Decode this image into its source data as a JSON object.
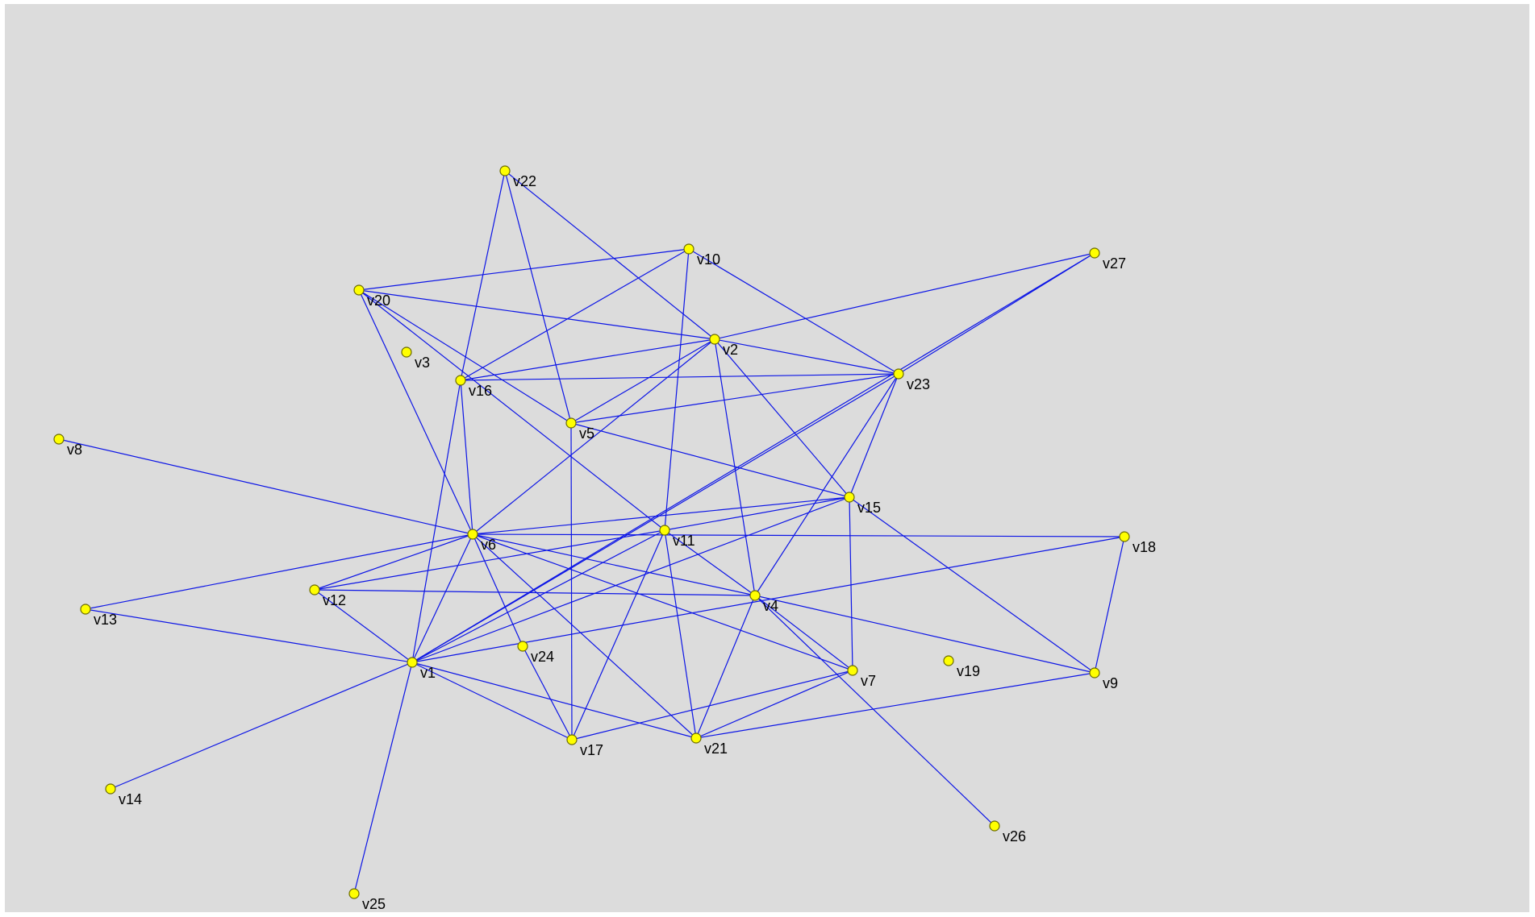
{
  "graph": {
    "nodes": [
      {
        "id": "v1"
      },
      {
        "id": "v2"
      },
      {
        "id": "v3"
      },
      {
        "id": "v4"
      },
      {
        "id": "v5"
      },
      {
        "id": "v6"
      },
      {
        "id": "v7"
      },
      {
        "id": "v8"
      },
      {
        "id": "v9"
      },
      {
        "id": "v10"
      },
      {
        "id": "v11"
      },
      {
        "id": "v12"
      },
      {
        "id": "v13"
      },
      {
        "id": "v14"
      },
      {
        "id": "v15"
      },
      {
        "id": "v16"
      },
      {
        "id": "v17"
      },
      {
        "id": "v18"
      },
      {
        "id": "v19"
      },
      {
        "id": "v20"
      },
      {
        "id": "v21"
      },
      {
        "id": "v22"
      },
      {
        "id": "v23"
      },
      {
        "id": "v24"
      },
      {
        "id": "v25"
      },
      {
        "id": "v26"
      },
      {
        "id": "v27"
      }
    ],
    "edges": [
      [
        "v22",
        "v16"
      ],
      [
        "v22",
        "v5"
      ],
      [
        "v22",
        "v2"
      ],
      [
        "v10",
        "v20"
      ],
      [
        "v10",
        "v16"
      ],
      [
        "v10",
        "v11"
      ],
      [
        "v10",
        "v23"
      ],
      [
        "v20",
        "v2"
      ],
      [
        "v20",
        "v5"
      ],
      [
        "v20",
        "v6"
      ],
      [
        "v20",
        "v11"
      ],
      [
        "v27",
        "v2"
      ],
      [
        "v27",
        "v23"
      ],
      [
        "v27",
        "v1"
      ],
      [
        "v2",
        "v16"
      ],
      [
        "v2",
        "v23"
      ],
      [
        "v2",
        "v5"
      ],
      [
        "v2",
        "v6"
      ],
      [
        "v2",
        "v4"
      ],
      [
        "v2",
        "v15"
      ],
      [
        "v16",
        "v23"
      ],
      [
        "v16",
        "v6"
      ],
      [
        "v16",
        "v1"
      ],
      [
        "v23",
        "v5"
      ],
      [
        "v23",
        "v15"
      ],
      [
        "v23",
        "v4"
      ],
      [
        "v23",
        "v1"
      ],
      [
        "v5",
        "v15"
      ],
      [
        "v5",
        "v17"
      ],
      [
        "v8",
        "v6"
      ],
      [
        "v15",
        "v6"
      ],
      [
        "v15",
        "v11"
      ],
      [
        "v15",
        "v7"
      ],
      [
        "v15",
        "v9"
      ],
      [
        "v15",
        "v1"
      ],
      [
        "v6",
        "v18"
      ],
      [
        "v6",
        "v12"
      ],
      [
        "v6",
        "v13"
      ],
      [
        "v6",
        "v4"
      ],
      [
        "v6",
        "v7"
      ],
      [
        "v6",
        "v21"
      ],
      [
        "v6",
        "v24"
      ],
      [
        "v6",
        "v1"
      ],
      [
        "v11",
        "v12"
      ],
      [
        "v11",
        "v4"
      ],
      [
        "v11",
        "v21"
      ],
      [
        "v11",
        "v17"
      ],
      [
        "v11",
        "v1"
      ],
      [
        "v18",
        "v9"
      ],
      [
        "v18",
        "v1"
      ],
      [
        "v12",
        "v4"
      ],
      [
        "v12",
        "v1"
      ],
      [
        "v4",
        "v9"
      ],
      [
        "v4",
        "v7"
      ],
      [
        "v4",
        "v21"
      ],
      [
        "v4",
        "v26"
      ],
      [
        "v13",
        "v1"
      ],
      [
        "v1",
        "v14"
      ],
      [
        "v1",
        "v25"
      ],
      [
        "v1",
        "v21"
      ],
      [
        "v1",
        "v17"
      ],
      [
        "v24",
        "v17"
      ],
      [
        "v7",
        "v17"
      ],
      [
        "v7",
        "v21"
      ],
      [
        "v9",
        "v21"
      ]
    ]
  },
  "colors": {
    "background": "#dcdcdc",
    "edge": "#0b14e6",
    "node_fill": "#ffff00",
    "node_stroke": "#6b6b00",
    "label": "#000000"
  }
}
